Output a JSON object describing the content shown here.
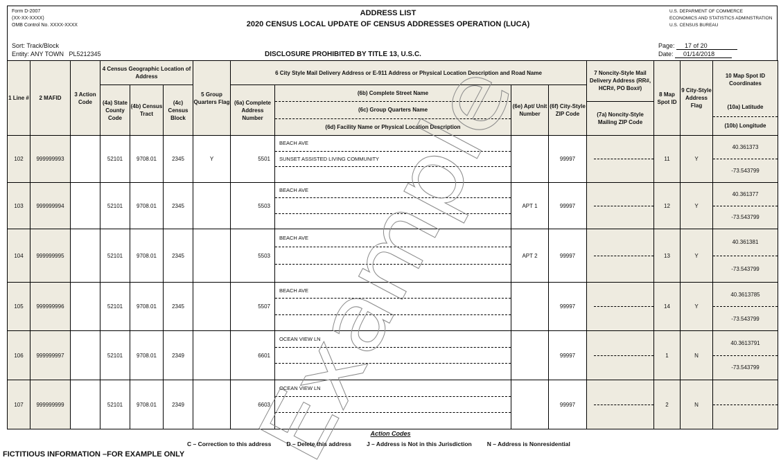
{
  "form": {
    "number": "Form D-2007",
    "date_code": "(XX-XX-XXXX)",
    "omb": "OMB Control No. XXXX-XXXX"
  },
  "title": "ADDRESS LIST",
  "subtitle": "2020 CENSUS LOCAL UPDATE OF CENSUS ADDRESSES OPERATION (LUCA)",
  "agency": [
    "U.S. DEPARMENT OF COMMERCE",
    "ECONOMICS AND STATISTICS ADMINSTRATION",
    "U.S. CENSUS BUREAU"
  ],
  "sort": "Sort: Track/Block",
  "entity": "Entity: ANY TOWN   PL5212345",
  "disclosure": "DISCLOSURE PROHIBITED BY TITLE 13, U.S.C.",
  "page_label": "Page:",
  "page_value": "17 of 20",
  "date_label": "Date:",
  "date_value": "01/14/2018",
  "headers": {
    "c1": "1 Line #",
    "c2": "2 MAFID",
    "c3": "3 Action Code",
    "c4": "4 Census Geographic Location of Address",
    "c4a": "(4a) State County Code",
    "c4b": "(4b) Census Tract",
    "c4c": "(4c) Census Block",
    "c5": "5 Group Quarters Flag",
    "c6": "6 City Style Mail Delivery Address or E-911 Address or Physical Location Description and Road Name",
    "c6a": "(6a) Complete Address Number",
    "c6b": "(6b) Complete Street Name",
    "c6c": "(6c) Group Quarters Name",
    "c6d": "(6d) Facility Name or Physical Location Description",
    "c6e": "(6e) Apt/ Unit Number",
    "c6f": "(6f) City-Style ZIP Code",
    "c7": "7 Noncity-Style Mail Delivery Address (RR#, HCR#, PO Box#)",
    "c7a": "(7a) Noncity-Style Mailing ZIP Code",
    "c8": "8 Map Spot ID",
    "c9": "9 City-Style Address Flag",
    "c10": "10 Map Spot ID Coordinates",
    "c10a": "(10a) Latitude",
    "c10b": "(10b) Longitude"
  },
  "rows": [
    {
      "line": "102",
      "mafid": "999999993",
      "action": "",
      "county": "52101",
      "tract": "9708.01",
      "block": "2345",
      "gq": "Y",
      "num": "5501",
      "street": "BEACH AVE",
      "gqname": "SUNSET ASSISTED LIVING COMMUNITY",
      "facility": "",
      "apt": "",
      "zip": "99997",
      "spot": "11",
      "flag": "Y",
      "lat": "40.361373",
      "lon": "-73.543799"
    },
    {
      "line": "103",
      "mafid": "999999994",
      "action": "",
      "county": "52101",
      "tract": "9708.01",
      "block": "2345",
      "gq": "",
      "num": "5503",
      "street": "BEACH AVE",
      "gqname": "",
      "facility": "",
      "apt": "APT 1",
      "zip": "99997",
      "spot": "12",
      "flag": "Y",
      "lat": "40.361377",
      "lon": "-73.543799"
    },
    {
      "line": "104",
      "mafid": "999999995",
      "action": "",
      "county": "52101",
      "tract": "9708.01",
      "block": "2345",
      "gq": "",
      "num": "5503",
      "street": "BEACH AVE",
      "gqname": "",
      "facility": "",
      "apt": "APT 2",
      "zip": "99997",
      "spot": "13",
      "flag": "Y",
      "lat": "40.361381",
      "lon": "-73.543799"
    },
    {
      "line": "105",
      "mafid": "999999996",
      "action": "",
      "county": "52101",
      "tract": "9708.01",
      "block": "2345",
      "gq": "",
      "num": "5507",
      "street": "BEACH AVE",
      "gqname": "",
      "facility": "",
      "apt": "",
      "zip": "99997",
      "spot": "14",
      "flag": "Y",
      "lat": "40.3613785",
      "lon": "-73.543799"
    },
    {
      "line": "106",
      "mafid": "999999997",
      "action": "",
      "county": "52101",
      "tract": "9708.01",
      "block": "2349",
      "gq": "",
      "num": "6601",
      "street": "OCEAN VIEW LN",
      "gqname": "",
      "facility": "",
      "apt": "",
      "zip": "99997",
      "spot": "1",
      "flag": "N",
      "lat": "40.3613791",
      "lon": "-73.543799"
    },
    {
      "line": "107",
      "mafid": "999999999",
      "action": "",
      "county": "52101",
      "tract": "9708.01",
      "block": "2349",
      "gq": "",
      "num": "6603",
      "street": "OCEAN VIEW LN",
      "gqname": "",
      "facility": "",
      "apt": "",
      "zip": "99997",
      "spot": "2",
      "flag": "N",
      "lat": "",
      "lon": ""
    }
  ],
  "action_codes_title": "Action Codes",
  "action_codes": [
    "C – Correction to this address",
    "D – Delete this address",
    "J – Address is Not in this Jurisdiction",
    "N –  Address is Nonresidential"
  ],
  "footer": "FICTITIOUS INFORMATION –FOR EXAMPLE ONLY",
  "watermark": "Example",
  "colors": {
    "header_shade": "#eeebe0"
  }
}
